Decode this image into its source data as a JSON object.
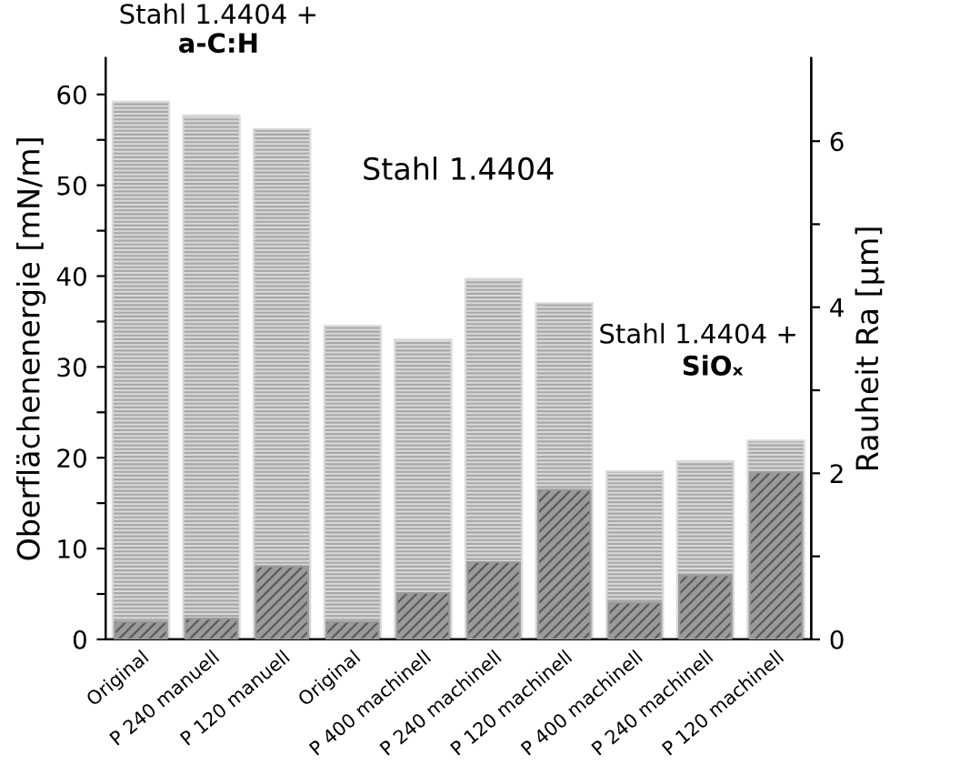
{
  "chart_data": {
    "type": "bar",
    "categories": [
      "Original",
      "P 240 manuell",
      "P 120 manuell",
      "Original",
      "P 400 machinell",
      "P 240 machinell",
      "P 120 machinell",
      "P 400 machinell",
      "P 240 machinell",
      "P 120 machinell"
    ],
    "series": [
      {
        "color": "#d9d9d9",
        "values": [
          59.2,
          57.7,
          56.2,
          34.5,
          33.0,
          39.7,
          37.0,
          18.5,
          19.6,
          21.9
        ]
      },
      {
        "axis": "y2",
        "color": "#9a9a9a",
        "values": [
          0.21,
          0.25,
          0.88,
          0.21,
          0.56,
          0.93,
          1.8,
          0.44,
          0.77,
          2.01
        ]
      }
    ],
    "ylabel": "Oberflächenenergie [mN/m]",
    "y2label": "Rauheit Ra [µm]",
    "ylim": [
      0,
      64
    ],
    "yticks": [
      0,
      {
        "value": 5,
        "label": null
      },
      10,
      {
        "value": 15,
        "label": null
      },
      20,
      {
        "value": 25,
        "label": null
      },
      30,
      {
        "value": 35,
        "label": null
      },
      40,
      {
        "value": 45,
        "label": null
      },
      50,
      {
        "value": 55,
        "label": null
      },
      60
    ],
    "y2lim": [
      0,
      7
    ],
    "y2ticks": [
      0,
      {
        "value": 1,
        "label": null
      },
      2,
      {
        "value": 3,
        "label": null
      },
      4,
      {
        "value": 5,
        "label": null
      },
      6
    ],
    "annotations": [
      "Stahl 1.4404 +",
      "a-C:H",
      "Stahl 1.4404",
      "Stahl 1.4404 +",
      "SiOₓ"
    ],
    "grid": false,
    "legend": false
  }
}
